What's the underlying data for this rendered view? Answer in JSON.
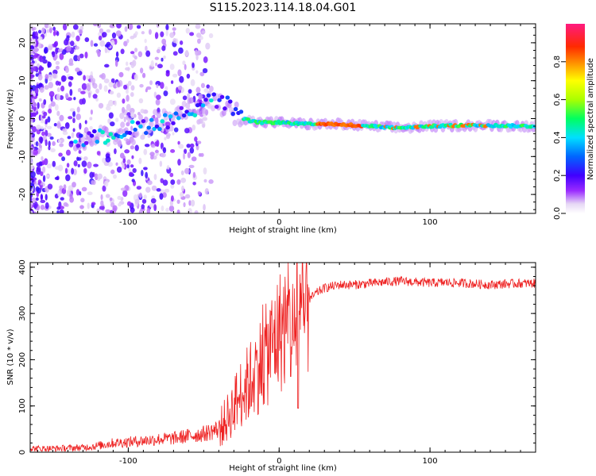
{
  "title": "S115.2023.114.18.04.G01",
  "colors": {
    "snr_line": "#ee2222",
    "axis": "#000000",
    "background": "#ffffff"
  },
  "chart_data": [
    {
      "type": "heatmap",
      "title": "S115.2023.114.18.04.G01",
      "xlabel": "Height of straight line (km)",
      "ylabel": "Frequency (Hz)",
      "xlim": [
        -165,
        170
      ],
      "ylim": [
        -25,
        25
      ],
      "x_ticks": [
        -100,
        0,
        100
      ],
      "y_ticks": [
        -20,
        -10,
        0,
        10,
        20
      ],
      "colorbar": {
        "label": "Normalized spectral amplitude",
        "range": [
          0,
          1
        ],
        "ticks": [
          "0.0",
          "0.2",
          "0.4",
          "0.6",
          "0.8"
        ],
        "colormap": "rainbow (white-lavender-purple-blue-cyan-green-yellow-orange-red-pink)"
      },
      "ridge": {
        "x": [
          -130,
          -110,
          -90,
          -70,
          -55,
          -45,
          -35,
          -25,
          -15,
          0,
          20,
          40,
          60,
          80,
          100,
          120,
          140,
          165
        ],
        "y": [
          -6,
          -4,
          -2,
          0,
          3,
          5,
          4,
          0,
          -1,
          -1,
          -1.5,
          -1.5,
          -2,
          -2.5,
          -2,
          -1.8,
          -1.8,
          -2
        ]
      }
    },
    {
      "type": "line",
      "xlabel": "Height of straight line (km)",
      "ylabel": "SNR (10 * v/v)",
      "xlim": [
        -165,
        170
      ],
      "ylim": [
        0,
        410
      ],
      "x_ticks": [
        -100,
        0,
        100
      ],
      "y_ticks": [
        0,
        100,
        200,
        300,
        400
      ],
      "series": [
        {
          "x": [
            -165,
            -150,
            -130,
            -120,
            -110,
            -100,
            -90,
            -80,
            -70,
            -60,
            -50,
            -40,
            -35,
            -30,
            -25,
            -20,
            -15,
            -10,
            -5,
            0,
            5,
            10,
            12,
            15,
            20,
            25,
            30,
            40,
            50,
            60,
            70,
            80,
            90,
            100,
            110,
            120,
            130,
            140,
            150,
            160,
            170
          ],
          "y": [
            8,
            8,
            10,
            14,
            20,
            22,
            25,
            28,
            30,
            35,
            40,
            50,
            70,
            100,
            130,
            150,
            180,
            200,
            230,
            260,
            280,
            250,
            300,
            280,
            330,
            345,
            355,
            362,
            362,
            365,
            368,
            370,
            368,
            366,
            367,
            366,
            364,
            362,
            364,
            365,
            365
          ]
        }
      ]
    }
  ]
}
